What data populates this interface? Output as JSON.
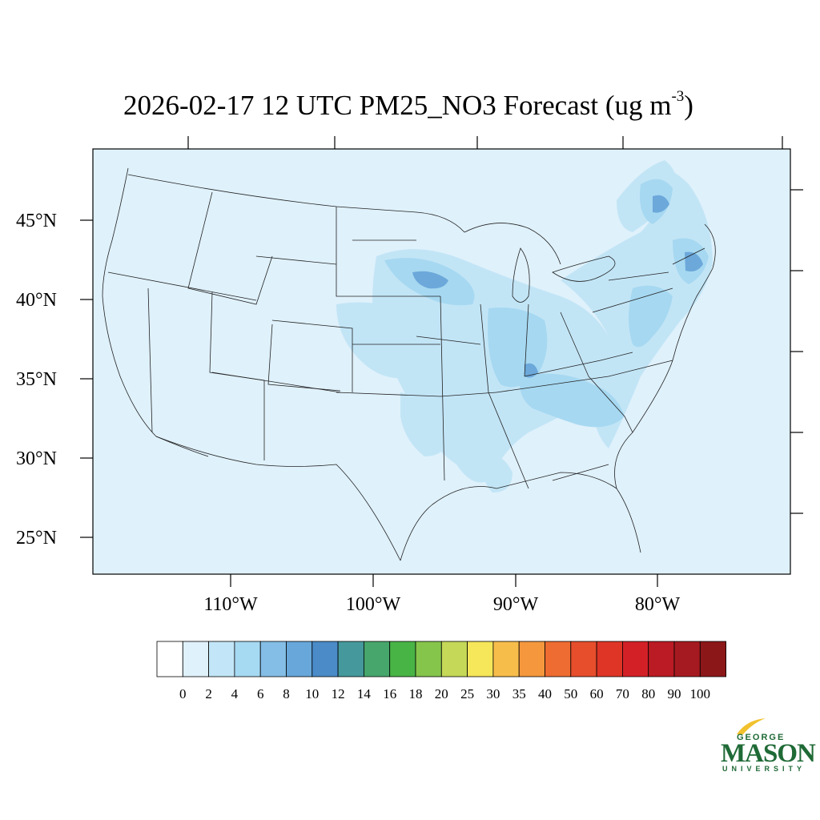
{
  "title": {
    "text": "2026-02-17 12 UTC PM25_NO3 Forecast (ug m",
    "superscript": "-3",
    "suffix": ")"
  },
  "map": {
    "background_color": "#dff1fb",
    "latitude_labels": [
      "45°N",
      "40°N",
      "35°N",
      "30°N",
      "25°N"
    ],
    "longitude_labels": [
      "110°W",
      "100°W",
      "90°W",
      "80°W"
    ],
    "shading_colors": {
      "level_2_4": "#c2e5f6",
      "level_4_6": "#a6d8f1",
      "level_6_8": "#87c3e8",
      "level_8_10": "#6ca8da",
      "level_10_12": "#4e8ccb"
    }
  },
  "colorbar": {
    "labels": [
      "0",
      "2",
      "4",
      "6",
      "8",
      "10",
      "12",
      "14",
      "16",
      "18",
      "20",
      "25",
      "30",
      "35",
      "40",
      "50",
      "60",
      "70",
      "80",
      "90",
      "100"
    ],
    "colors": [
      "#ffffff",
      "#dff1fb",
      "#c2e6f7",
      "#a6d9f2",
      "#84bee6",
      "#67a7da",
      "#4a8bc8",
      "#45999c",
      "#47a66c",
      "#48b446",
      "#86c54b",
      "#c5d858",
      "#f5e65a",
      "#f7bd4b",
      "#f4973d",
      "#ee6c31",
      "#e64e2c",
      "#df3527",
      "#d32027",
      "#bb1b24",
      "#a51a20",
      "#8c1719"
    ]
  },
  "logo": {
    "line1": "GEORGE",
    "line2": "MASON",
    "line3": "UNIVERSITY",
    "color": "#1f6a36",
    "accent": "#f1c22e"
  }
}
